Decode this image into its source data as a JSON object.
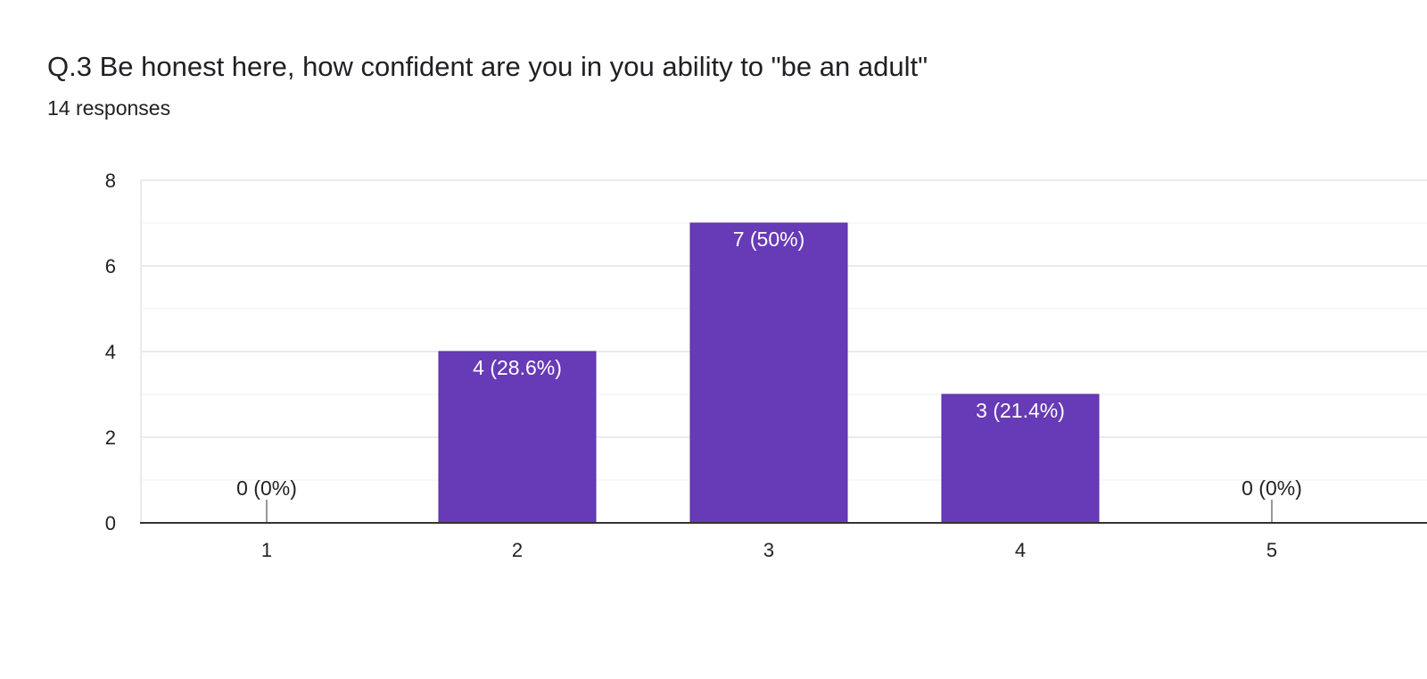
{
  "header": {
    "title": "Q.3 Be honest here, how confident are you in you ability to \"be an adult\"",
    "subtitle": "14 responses"
  },
  "colors": {
    "bar": "#673ab7",
    "gridline": "#ebebeb",
    "minor_gridline": "#f5f5f5",
    "axis": "#333333",
    "zero_marker": "#999999"
  },
  "chart_data": {
    "type": "bar",
    "title": "Q.3 Be honest here, how confident are you in you ability to \"be an adult\"",
    "subtitle": "14 responses",
    "categories": [
      "1",
      "2",
      "3",
      "4",
      "5"
    ],
    "values": [
      0,
      4,
      7,
      3,
      0
    ],
    "data_labels": [
      "0 (0%)",
      "4 (28.6%)",
      "7 (50%)",
      "3 (21.4%)",
      "0 (0%)"
    ],
    "ylim": [
      0,
      8
    ],
    "yticks": [
      0,
      2,
      4,
      6,
      8
    ],
    "xlabel": "",
    "ylabel": "",
    "grid": true,
    "legend": "none"
  }
}
